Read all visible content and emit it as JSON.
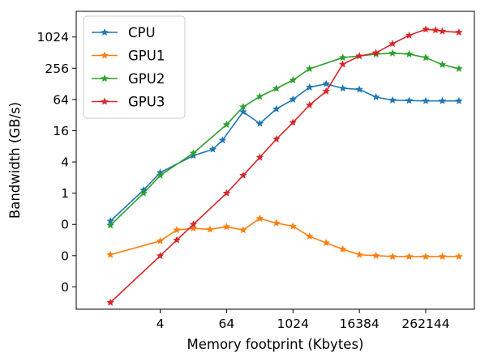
{
  "chart_data": {
    "type": "line",
    "title": "",
    "xlabel": "Memory footprint (Kbytes)",
    "ylabel": "Bandwidth (GB/s)",
    "x_scale": "log2",
    "y_scale": "log2",
    "xlim": [
      0.12,
      2000000
    ],
    "ylim": [
      0.0058,
      3200
    ],
    "x_ticks": [
      {
        "value": 4,
        "label": "4"
      },
      {
        "value": 64,
        "label": "64"
      },
      {
        "value": 1024,
        "label": "1024"
      },
      {
        "value": 16384,
        "label": "16384"
      },
      {
        "value": 262144,
        "label": "262144"
      }
    ],
    "y_ticks": [
      {
        "value": 0.015625,
        "label": "0"
      },
      {
        "value": 0.0625,
        "label": "0"
      },
      {
        "value": 0.25,
        "label": "0"
      },
      {
        "value": 1,
        "label": "1"
      },
      {
        "value": 4,
        "label": "4"
      },
      {
        "value": 16,
        "label": "16"
      },
      {
        "value": 64,
        "label": "64"
      },
      {
        "value": 256,
        "label": "256"
      },
      {
        "value": 1024,
        "label": "1024"
      }
    ],
    "grid": false,
    "legend_position": "top-left",
    "marker": "star",
    "series": [
      {
        "name": "CPU",
        "color": "#1f77b4",
        "points": [
          [
            0.5,
            0.29
          ],
          [
            2,
            1.15
          ],
          [
            4,
            2.5
          ],
          [
            16,
            5.3
          ],
          [
            36,
            7.0
          ],
          [
            54,
            10.5
          ],
          [
            128,
            37
          ],
          [
            256,
            22
          ],
          [
            512,
            42
          ],
          [
            1024,
            64
          ],
          [
            2048,
            110
          ],
          [
            4096,
            128
          ],
          [
            8192,
            105
          ],
          [
            16384,
            100
          ],
          [
            32768,
            71
          ],
          [
            65536,
            62
          ],
          [
            131072,
            61
          ],
          [
            262144,
            60
          ],
          [
            524288,
            60
          ],
          [
            1048576,
            60
          ]
        ]
      },
      {
        "name": "GPU1",
        "color": "#ff7f0e",
        "points": [
          [
            0.5,
            0.065
          ],
          [
            4,
            0.12
          ],
          [
            8,
            0.195
          ],
          [
            16,
            0.21
          ],
          [
            32,
            0.2
          ],
          [
            64,
            0.225
          ],
          [
            128,
            0.195
          ],
          [
            256,
            0.325
          ],
          [
            512,
            0.265
          ],
          [
            1024,
            0.23
          ],
          [
            2048,
            0.147
          ],
          [
            4096,
            0.11
          ],
          [
            8192,
            0.083
          ],
          [
            16384,
            0.065
          ],
          [
            32768,
            0.0625
          ],
          [
            65536,
            0.06
          ],
          [
            131072,
            0.06
          ],
          [
            262144,
            0.06
          ],
          [
            524288,
            0.06
          ],
          [
            1048576,
            0.06
          ]
        ]
      },
      {
        "name": "GPU2",
        "color": "#2ca02c",
        "points": [
          [
            0.5,
            0.24
          ],
          [
            2,
            1.0
          ],
          [
            4,
            2.2
          ],
          [
            16,
            5.9
          ],
          [
            64,
            21
          ],
          [
            128,
            46
          ],
          [
            256,
            73
          ],
          [
            512,
            104
          ],
          [
            1024,
            151
          ],
          [
            2048,
            250
          ],
          [
            8192,
            410
          ],
          [
            16384,
            440
          ],
          [
            32768,
            480
          ],
          [
            65536,
            500
          ],
          [
            131072,
            480
          ],
          [
            262144,
            410
          ],
          [
            524288,
            300
          ],
          [
            1048576,
            250
          ]
        ]
      },
      {
        "name": "GPU3",
        "color": "#d62728",
        "points": [
          [
            0.5,
            0.0078
          ],
          [
            4,
            0.062
          ],
          [
            8,
            0.125
          ],
          [
            16,
            0.25
          ],
          [
            64,
            1.0
          ],
          [
            128,
            2.2
          ],
          [
            256,
            4.9
          ],
          [
            512,
            11
          ],
          [
            1024,
            23
          ],
          [
            2048,
            50
          ],
          [
            4096,
            92
          ],
          [
            8192,
            305
          ],
          [
            16384,
            440
          ],
          [
            32768,
            505
          ],
          [
            65536,
            760
          ],
          [
            131072,
            1100
          ],
          [
            262144,
            1440
          ],
          [
            393216,
            1390
          ],
          [
            524288,
            1320
          ],
          [
            1048576,
            1260
          ]
        ]
      }
    ]
  }
}
